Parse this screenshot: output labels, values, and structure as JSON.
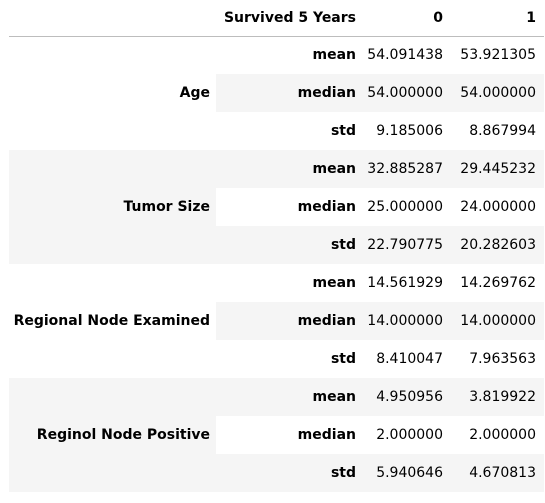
{
  "header": {
    "corner": "",
    "index_name": "Survived 5 Years",
    "col0": "0",
    "col1": "1"
  },
  "groups": [
    {
      "label": "Age",
      "rows": [
        {
          "stat": "mean",
          "v0": "54.091438",
          "v1": "53.921305"
        },
        {
          "stat": "median",
          "v0": "54.000000",
          "v1": "54.000000"
        },
        {
          "stat": "std",
          "v0": "9.185006",
          "v1": "8.867994"
        }
      ]
    },
    {
      "label": "Tumor Size",
      "rows": [
        {
          "stat": "mean",
          "v0": "32.885287",
          "v1": "29.445232"
        },
        {
          "stat": "median",
          "v0": "25.000000",
          "v1": "24.000000"
        },
        {
          "stat": "std",
          "v0": "22.790775",
          "v1": "20.282603"
        }
      ]
    },
    {
      "label": "Regional Node Examined",
      "rows": [
        {
          "stat": "mean",
          "v0": "14.561929",
          "v1": "14.269762"
        },
        {
          "stat": "median",
          "v0": "14.000000",
          "v1": "14.000000"
        },
        {
          "stat": "std",
          "v0": "8.410047",
          "v1": "7.963563"
        }
      ]
    },
    {
      "label": "Reginol Node Positive",
      "rows": [
        {
          "stat": "mean",
          "v0": "4.950956",
          "v1": "3.819922"
        },
        {
          "stat": "median",
          "v0": "2.000000",
          "v1": "2.000000"
        },
        {
          "stat": "std",
          "v0": "5.940646",
          "v1": "4.670813"
        }
      ]
    }
  ]
}
